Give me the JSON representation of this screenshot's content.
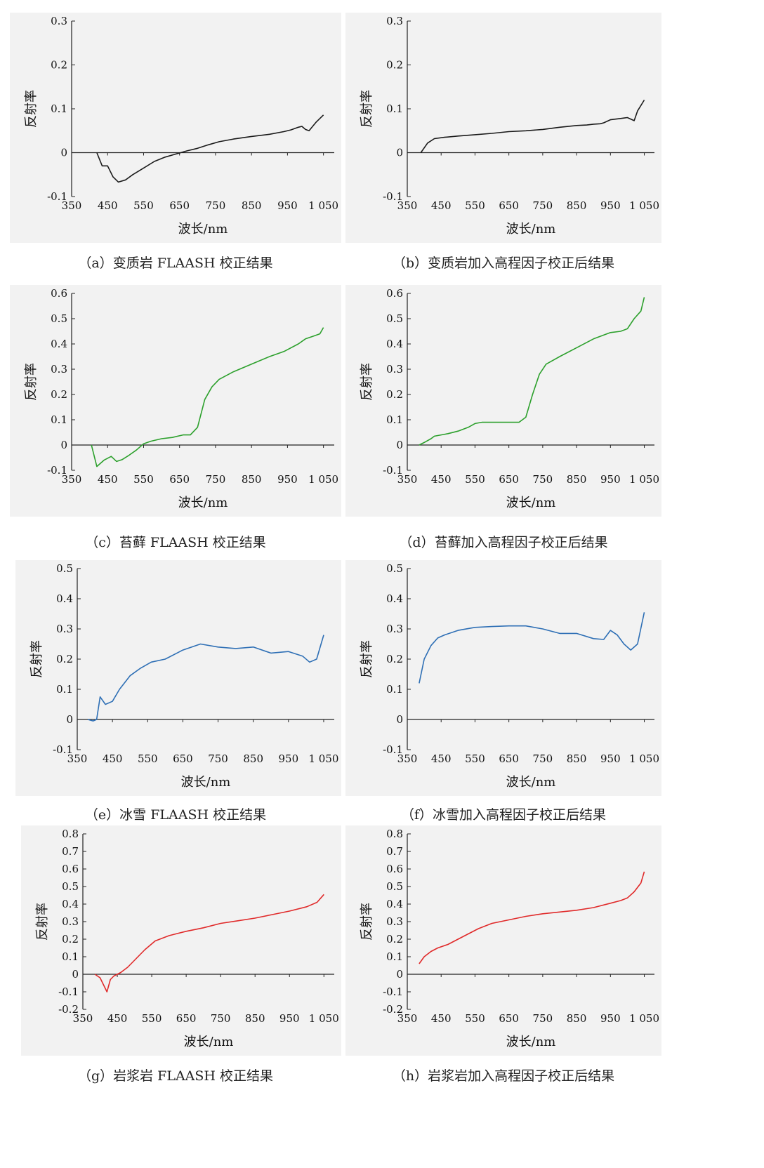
{
  "chart_data": [
    {
      "type": "line",
      "caption": "（a）变质岩 FLAASH 校正结果",
      "xlabel": "波长/nm",
      "ylabel": "反射率",
      "xticks": [
        "350",
        "450",
        "550",
        "650",
        "750",
        "850",
        "950",
        "1 050"
      ],
      "yticks": [
        "-0.1",
        "0",
        "0.1",
        "0.2",
        "0.3"
      ],
      "xlim": [
        350,
        1080
      ],
      "ylim": [
        -0.1,
        0.3
      ],
      "color": "#1a1a1a",
      "series": [
        {
          "x": [
            420,
            435,
            450,
            465,
            480,
            500,
            520,
            550,
            580,
            610,
            640,
            670,
            700,
            730,
            760,
            800,
            850,
            900,
            940,
            960,
            980,
            990,
            1000,
            1010,
            1030,
            1050
          ],
          "y": [
            0.0,
            -0.03,
            -0.03,
            -0.055,
            -0.067,
            -0.062,
            -0.05,
            -0.035,
            -0.02,
            -0.01,
            -0.003,
            0.004,
            0.01,
            0.018,
            0.025,
            0.031,
            0.037,
            0.042,
            0.048,
            0.052,
            0.058,
            0.06,
            0.053,
            0.05,
            0.07,
            0.086
          ]
        }
      ]
    },
    {
      "type": "line",
      "caption": "（b）变质岩加入高程因子校正后结果",
      "xlabel": "波长/nm",
      "ylabel": "反射率",
      "xticks": [
        "350",
        "450",
        "550",
        "650",
        "750",
        "850",
        "950",
        "1 050"
      ],
      "yticks": [
        "-0.1",
        "0",
        "0.1",
        "0.2",
        "0.3"
      ],
      "xlim": [
        350,
        1080
      ],
      "ylim": [
        -0.1,
        0.3
      ],
      "color": "#1a1a1a",
      "series": [
        {
          "x": [
            390,
            410,
            430,
            460,
            500,
            550,
            600,
            650,
            700,
            750,
            800,
            850,
            880,
            900,
            920,
            930,
            950,
            980,
            1000,
            1020,
            1030,
            1050
          ],
          "y": [
            0.0,
            0.022,
            0.032,
            0.035,
            0.038,
            0.041,
            0.044,
            0.048,
            0.05,
            0.053,
            0.058,
            0.062,
            0.063,
            0.065,
            0.066,
            0.068,
            0.075,
            0.078,
            0.08,
            0.073,
            0.095,
            0.12
          ]
        }
      ]
    },
    {
      "type": "line",
      "caption": "（c）苔藓 FLAASH 校正结果",
      "xlabel": "波长/nm",
      "ylabel": "反射率",
      "xticks": [
        "350",
        "450",
        "550",
        "650",
        "750",
        "850",
        "950",
        "1 050"
      ],
      "yticks": [
        "-0.1",
        "0",
        "0.1",
        "0.2",
        "0.3",
        "0.4",
        "0.5",
        "0.6"
      ],
      "xlim": [
        350,
        1080
      ],
      "ylim": [
        -0.1,
        0.6
      ],
      "color": "#2ca02c",
      "series": [
        {
          "x": [
            405,
            420,
            440,
            460,
            475,
            490,
            510,
            530,
            550,
            570,
            600,
            630,
            660,
            680,
            700,
            720,
            740,
            760,
            800,
            850,
            900,
            940,
            980,
            1000,
            1020,
            1040,
            1050
          ],
          "y": [
            0.0,
            -0.085,
            -0.06,
            -0.045,
            -0.065,
            -0.058,
            -0.04,
            -0.02,
            0.005,
            0.015,
            0.025,
            0.03,
            0.04,
            0.04,
            0.07,
            0.18,
            0.23,
            0.26,
            0.29,
            0.32,
            0.35,
            0.37,
            0.4,
            0.42,
            0.43,
            0.44,
            0.465
          ]
        }
      ]
    },
    {
      "type": "line",
      "caption": "（d）苔藓加入高程因子校正后结果",
      "xlabel": "波长/nm",
      "ylabel": "反射率",
      "xticks": [
        "350",
        "450",
        "550",
        "650",
        "750",
        "850",
        "950",
        "1 050"
      ],
      "yticks": [
        "-0.1",
        "0",
        "0.1",
        "0.2",
        "0.3",
        "0.4",
        "0.5",
        "0.6"
      ],
      "xlim": [
        350,
        1080
      ],
      "ylim": [
        -0.1,
        0.6
      ],
      "color": "#2ca02c",
      "series": [
        {
          "x": [
            385,
            400,
            420,
            430,
            450,
            470,
            500,
            530,
            550,
            570,
            600,
            640,
            680,
            700,
            720,
            740,
            760,
            800,
            850,
            900,
            950,
            980,
            1000,
            1020,
            1040,
            1050
          ],
          "y": [
            0.0,
            0.01,
            0.025,
            0.035,
            0.04,
            0.045,
            0.055,
            0.07,
            0.085,
            0.09,
            0.09,
            0.09,
            0.09,
            0.11,
            0.2,
            0.28,
            0.32,
            0.35,
            0.385,
            0.42,
            0.445,
            0.45,
            0.46,
            0.5,
            0.53,
            0.585
          ]
        }
      ]
    },
    {
      "type": "line",
      "caption": "（e）冰雪 FLAASH 校正结果",
      "xlabel": "波长/nm",
      "ylabel": "反射率",
      "xticks": [
        "350",
        "450",
        "550",
        "650",
        "750",
        "850",
        "950",
        "1 050"
      ],
      "yticks": [
        "-0.1",
        "0",
        "0.1",
        "0.2",
        "0.3",
        "0.4",
        "0.5"
      ],
      "xlim": [
        350,
        1080
      ],
      "ylim": [
        -0.1,
        0.5
      ],
      "color": "#2e6fb5",
      "series": [
        {
          "x": [
            380,
            395,
            405,
            415,
            430,
            450,
            470,
            500,
            530,
            560,
            600,
            650,
            700,
            750,
            800,
            850,
            900,
            950,
            990,
            1010,
            1030,
            1050
          ],
          "y": [
            0.0,
            -0.005,
            0.0,
            0.075,
            0.05,
            0.06,
            0.1,
            0.145,
            0.17,
            0.19,
            0.2,
            0.23,
            0.25,
            0.24,
            0.235,
            0.24,
            0.22,
            0.225,
            0.21,
            0.19,
            0.2,
            0.28
          ]
        }
      ]
    },
    {
      "type": "line",
      "caption": "（f）冰雪加入高程因子校正后结果",
      "xlabel": "波长/nm",
      "ylabel": "反射率",
      "xticks": [
        "350",
        "450",
        "550",
        "650",
        "750",
        "850",
        "950",
        "1 050"
      ],
      "yticks": [
        "-0.1",
        "0",
        "0.1",
        "0.2",
        "0.3",
        "0.4",
        "0.5"
      ],
      "xlim": [
        350,
        1080
      ],
      "ylim": [
        -0.1,
        0.5
      ],
      "color": "#2e6fb5",
      "series": [
        {
          "x": [
            385,
            400,
            420,
            440,
            460,
            500,
            550,
            600,
            650,
            700,
            750,
            800,
            850,
            900,
            930,
            950,
            970,
            990,
            1010,
            1030,
            1050
          ],
          "y": [
            0.12,
            0.2,
            0.245,
            0.27,
            0.28,
            0.295,
            0.305,
            0.308,
            0.31,
            0.31,
            0.3,
            0.285,
            0.285,
            0.268,
            0.265,
            0.295,
            0.28,
            0.25,
            0.23,
            0.25,
            0.355
          ]
        }
      ]
    },
    {
      "type": "line",
      "caption": "（g）岩浆岩 FLAASH 校正结果",
      "xlabel": "波长/nm",
      "ylabel": "反射率",
      "xticks": [
        "350",
        "450",
        "550",
        "650",
        "750",
        "850",
        "950",
        "1 050"
      ],
      "yticks": [
        "-0.2",
        "-0.1",
        "0",
        "0.1",
        "0.2",
        "0.3",
        "0.4",
        "0.5",
        "0.6",
        "0.7",
        "0.8"
      ],
      "xlim": [
        350,
        1080
      ],
      "ylim": [
        -0.2,
        0.8
      ],
      "color": "#e02a2a",
      "series": [
        {
          "x": [
            385,
            400,
            410,
            420,
            430,
            440,
            450,
            460,
            480,
            500,
            530,
            560,
            600,
            650,
            700,
            750,
            800,
            850,
            900,
            950,
            1000,
            1030,
            1050
          ],
          "y": [
            0.0,
            -0.02,
            -0.06,
            -0.1,
            -0.03,
            -0.01,
            0.0,
            0.01,
            0.04,
            0.08,
            0.14,
            0.19,
            0.22,
            0.245,
            0.265,
            0.29,
            0.305,
            0.32,
            0.34,
            0.36,
            0.385,
            0.41,
            0.455
          ]
        }
      ]
    },
    {
      "type": "line",
      "caption": "（h）岩浆岩加入高程因子校正后结果",
      "xlabel": "波长/nm",
      "ylabel": "反射率",
      "xticks": [
        "350",
        "450",
        "550",
        "650",
        "750",
        "850",
        "950",
        "1 050"
      ],
      "yticks": [
        "-0.2",
        "-0.1",
        "0",
        "0.1",
        "0.2",
        "0.3",
        "0.4",
        "0.5",
        "0.6",
        "0.7",
        "0.8"
      ],
      "xlim": [
        350,
        1080
      ],
      "ylim": [
        -0.2,
        0.8
      ],
      "color": "#e02a2a",
      "series": [
        {
          "x": [
            385,
            400,
            420,
            440,
            470,
            500,
            530,
            560,
            600,
            650,
            700,
            750,
            800,
            850,
            900,
            950,
            980,
            1000,
            1020,
            1040,
            1050
          ],
          "y": [
            0.06,
            0.1,
            0.13,
            0.15,
            0.17,
            0.2,
            0.23,
            0.26,
            0.29,
            0.31,
            0.33,
            0.345,
            0.355,
            0.365,
            0.38,
            0.405,
            0.42,
            0.435,
            0.47,
            0.52,
            0.585
          ]
        }
      ]
    }
  ]
}
